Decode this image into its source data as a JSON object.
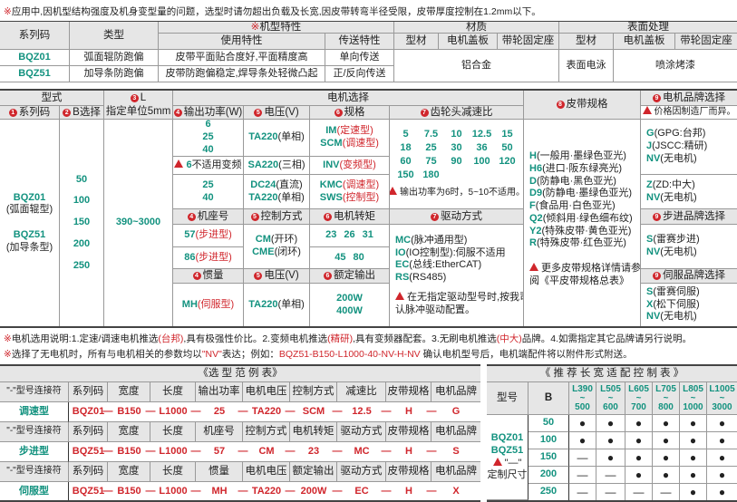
{
  "note_top": {
    "mark": "※",
    "text": "应用中,因机型结构强度及机身变型量的问题，选型时请勿超出负载及长宽,因皮带转弯半径受限，皮带厚度控制在1.2mm以下。"
  },
  "spec_table": {
    "headers": {
      "series": "系列码",
      "type": "类型",
      "features_mark": "※",
      "features": "机型特性",
      "usage": "使用特性",
      "transfer": "传送特性",
      "material": "材质",
      "profile": "型材",
      "motor_cover": "电机盖板",
      "pulley_seat": "带轮固定座",
      "surface": "表面处理",
      "s_profile": "型材",
      "s_motor_cover": "电机盖板",
      "s_pulley_seat": "带轮固定座"
    },
    "rows": [
      {
        "series": "BQZ01",
        "type": "弧面辊防跑偏",
        "usage": "皮带平面贴合度好,平面精度高",
        "transfer": "单向传送"
      },
      {
        "series": "BQZ51",
        "type": "加导条防跑偏",
        "usage": "皮带防跑偏稳定,焊导条处轻微凸起",
        "transfer": "正/反向传送"
      }
    ],
    "material": "铝合金",
    "surface_profile": "表面电泳",
    "surface_other": "喷涂烤漆"
  },
  "sel": {
    "h": {
      "form": "型式",
      "series": {
        "n": "1",
        "t": "系列码"
      },
      "b": {
        "n": "2",
        "t": "B选择"
      },
      "l": {
        "n": "3",
        "t": "L",
        "sub": "指定单位5mm"
      },
      "motor": "电机选择",
      "power": {
        "n": "4",
        "t": "输出功率(W)"
      },
      "volt": {
        "n": "5",
        "t": "电压(V)"
      },
      "spec": {
        "n": "6",
        "t": "规格"
      },
      "ratio": {
        "n": "7",
        "t": "齿轮头减速比"
      },
      "belt": {
        "n": "8",
        "t": "皮带规格"
      },
      "brand": {
        "n": "9",
        "t": "电机品牌选择"
      },
      "price_note": "价格因制造厂而异。",
      "frame": {
        "n": "4",
        "t": "机座号"
      },
      "control": {
        "n": "5",
        "t": "控制方式"
      },
      "torque": {
        "n": "6",
        "t": "电机转矩"
      },
      "drive": {
        "n": "7",
        "t": "驱动方式"
      },
      "step_brand": {
        "n": "9",
        "t": "步进品牌选择"
      },
      "inertia": {
        "n": "4",
        "t": "惯量"
      },
      "volt2": {
        "n": "5",
        "t": "电压(V)"
      },
      "output": {
        "n": "6",
        "t": "额定输出"
      },
      "servo_brand": {
        "n": "9",
        "t": "伺服品牌选择"
      }
    },
    "series": [
      {
        "code": "BQZ01",
        "desc": "(弧面辊型)"
      },
      {
        "code": "BQZ51",
        "desc": "(加导条型)"
      }
    ],
    "b_options": [
      "50",
      "100",
      "150",
      "200",
      "250"
    ],
    "l_range": "390~3000",
    "power_a": [
      "6",
      "25",
      "40"
    ],
    "power_note_num": "6",
    "power_note": "不适用变频",
    "power_c": [
      "25",
      "40"
    ],
    "volt_a": {
      "code": "TA220",
      "desc": "(单相)"
    },
    "volt_b": {
      "code": "SA220",
      "desc": "(三相)"
    },
    "volt_c": [
      {
        "code": "DC24",
        "desc": "(直流)"
      },
      {
        "code": "TA220",
        "desc": "(单相)"
      }
    ],
    "spec_a": [
      {
        "code": "IM",
        "desc": "(定速型)"
      },
      {
        "code": "SCM",
        "desc": "(调速型)"
      }
    ],
    "spec_b": {
      "code": "INV",
      "desc": "(变频型)"
    },
    "spec_c": [
      {
        "code": "KMC",
        "desc": "(调速型)"
      },
      {
        "code": "SWS",
        "desc": "(控制型)"
      }
    ],
    "ratios": [
      "5",
      "7.5",
      "10",
      "12.5",
      "15",
      "18",
      "25",
      "30",
      "36",
      "50",
      "60",
      "75",
      "90",
      "100",
      "120",
      "150",
      "180"
    ],
    "ratio_note": "输出功率为6时，5~10不适用。",
    "belts": [
      {
        "code": "H",
        "desc": "(一般用·墨绿色亚光)"
      },
      {
        "code": "H6",
        "desc": "(进口·阪东绿亮光)"
      },
      {
        "code": "D",
        "desc": "(防静电·黑色亚光)"
      },
      {
        "code": "D9",
        "desc": "(防静电·墨绿色亚光)"
      },
      {
        "code": "F",
        "desc": "(食品用·白色亚光)"
      },
      {
        "code": "Q2",
        "desc": "(倾斜用·绿色细布纹)"
      },
      {
        "code": "Y2",
        "desc": "(特殊皮带·黄色亚光)"
      },
      {
        "code": "R",
        "desc": "(特殊皮带·红色亚光)"
      }
    ],
    "belt_note": [
      "更多皮带规格详情请参",
      "阅《平皮带规格总表》"
    ],
    "brand_a": [
      {
        "code": "G",
        "desc": "(GPG:台邦)"
      },
      {
        "code": "J",
        "desc": "(JSCC:精研)"
      },
      {
        "code": "NV",
        "desc": "(无电机)"
      }
    ],
    "brand_b": [
      {
        "code": "Z",
        "desc": "(ZD:中大)"
      },
      {
        "code": "NV",
        "desc": "(无电机)"
      }
    ],
    "frames": [
      {
        "code": "57",
        "desc": "(步进型)"
      },
      {
        "code": "86",
        "desc": "(步进型)"
      }
    ],
    "controls": [
      {
        "code": "CM",
        "desc": "(开环)"
      },
      {
        "code": "CME",
        "desc": "(闭环)"
      }
    ],
    "torque_a": [
      "23",
      "26",
      "31"
    ],
    "torque_b": [
      "45",
      "80"
    ],
    "drives": [
      {
        "code": "MC",
        "desc": "(脉冲通用型)"
      },
      {
        "code": "IO",
        "desc": "(IO控制型):伺服不适用"
      },
      {
        "code": "EC",
        "desc": "(总线:EtherCAT)"
      },
      {
        "code": "RS",
        "desc": "(RS485)"
      }
    ],
    "drive_note": [
      "在无指定驱动型号时,按我司默",
      "认脉冲驱动配置。"
    ],
    "step_brands": [
      {
        "code": "S",
        "desc": "(雷赛步进)"
      },
      {
        "code": "NV",
        "desc": "(无电机)"
      }
    ],
    "inertia": {
      "code": "MH",
      "desc": "(伺服型)"
    },
    "servo_volt": {
      "code": "TA220",
      "desc": "(单相)"
    },
    "outputs": [
      "200W",
      "400W"
    ],
    "servo_brands": [
      {
        "code": "S",
        "desc": "(雷赛伺服)"
      },
      {
        "code": "X",
        "desc": "(松下伺服)"
      },
      {
        "code": "NV",
        "desc": "(无电机)"
      }
    ]
  },
  "notes": [
    [
      "※",
      "电机选用说明:1.定速/调速电机推选",
      "(台邦)",
      ",具有极强性价比。2.变频电机推选",
      "(精研)",
      ",具有变频器配套。3.无刷电机推选",
      "(中大)",
      "品牌。4.如需指定其它品牌请另行说明。"
    ],
    [
      "※",
      "选择了无电机时，所有与电机相关的参数均以",
      "\"NV\"",
      "表达；例如：",
      "BQZ51-B150-L1000-40-NV-H-NV",
      "  确认电机型号后，电机端配件将以附件形式附送。"
    ]
  ],
  "example": {
    "title": "《选 型 范 例 表》",
    "connector": "\"-\"型号连接符",
    "dash": "—",
    "groups": [
      {
        "type": "调速型",
        "headers": [
          "系列码",
          "宽度",
          "长度",
          "输出功率",
          "电机电压",
          "控制方式",
          "减速比",
          "皮带规格",
          "电机品牌"
        ],
        "values": [
          "BQZ01",
          "B150",
          "L1000",
          "25",
          "TA220",
          "SCM",
          "12.5",
          "H",
          "G"
        ]
      },
      {
        "type": "步进型",
        "headers": [
          "系列码",
          "宽度",
          "长度",
          "机座号",
          "控制方式",
          "电机转矩",
          "驱动方式",
          "皮带规格",
          "电机品牌"
        ],
        "values": [
          "BQZ51",
          "B150",
          "L1000",
          "57",
          "CM",
          "23",
          "MC",
          "H",
          "S"
        ]
      },
      {
        "type": "伺服型",
        "headers": [
          "系列码",
          "宽度",
          "长度",
          "惯量",
          "电机电压",
          "额定输出",
          "驱动方式",
          "皮带规格",
          "电机品牌"
        ],
        "values": [
          "BQZ51",
          "B150",
          "L1000",
          "MH",
          "TA220",
          "200W",
          "EC",
          "H",
          "X"
        ]
      }
    ]
  },
  "recommend": {
    "title": "《 推 荐 长 宽 适 配 控 制 表 》",
    "h_model": "型号",
    "h_b": "B",
    "tilde": "~",
    "lengths": [
      [
        "L390",
        "500"
      ],
      [
        "L505",
        "600"
      ],
      [
        "L605",
        "700"
      ],
      [
        "L705",
        "800"
      ],
      [
        "L805",
        "1000"
      ],
      [
        "L1005",
        "3000"
      ]
    ],
    "models": [
      "BQZ01",
      "BQZ51"
    ],
    "note_mark": "\"—\"",
    "note": "定制尺寸",
    "rows": [
      {
        "b": "50",
        "cells": [
          "●",
          "●",
          "●",
          "●",
          "●",
          "●"
        ]
      },
      {
        "b": "100",
        "cells": [
          "●",
          "●",
          "●",
          "●",
          "●",
          "●"
        ]
      },
      {
        "b": "150",
        "cells": [
          "—",
          "●",
          "●",
          "●",
          "●",
          "●"
        ]
      },
      {
        "b": "200",
        "cells": [
          "—",
          "—",
          "●",
          "●",
          "●",
          "●"
        ]
      },
      {
        "b": "250",
        "cells": [
          "—",
          "—",
          "—",
          "—",
          "●",
          "●"
        ]
      }
    ]
  },
  "colors": {
    "accent_green": "#13927f",
    "accent_red": "#d0262c",
    "header_bg": "#e6e6e6"
  }
}
